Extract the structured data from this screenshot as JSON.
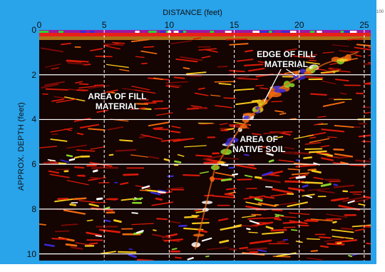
{
  "chart_data": {
    "type": "heatmap",
    "title": "",
    "xlabel": "DISTANCE (feet)",
    "ylabel": "APPROX. DEPTH (feet)",
    "xlim": [
      0,
      25.5
    ],
    "ylim": [
      10.3,
      0
    ],
    "x_ticks": [
      0,
      5,
      10,
      15,
      20,
      25
    ],
    "y_ticks": [
      0,
      2,
      4,
      6,
      8,
      10
    ],
    "grid": true,
    "grid_style": "x dashed white, y solid white",
    "colormap": [
      "#140402",
      "#7a0a04",
      "#d81a08",
      "#f06a10",
      "#f5c81c",
      "#8bd62a",
      "#ffffff",
      "#3a2ad6"
    ],
    "annotations": [
      {
        "text": "EDGE OF FILL MATERIAL",
        "x": 19.0,
        "y": 1.3
      },
      {
        "text": "AREA OF FILL MATERIAL",
        "x": 6.0,
        "y": 3.2
      },
      {
        "text": "AREA OF NATIVE SOIL",
        "x": 16.9,
        "y": 5.1
      }
    ],
    "corner_label": "100",
    "fill_boundary": [
      [
        12.0,
        9.8
      ],
      [
        13.5,
        6.2
      ],
      [
        15.2,
        4.6
      ],
      [
        16.5,
        3.7
      ],
      [
        17.2,
        3.4
      ],
      [
        18.5,
        2.6
      ],
      [
        20.0,
        2.1
      ],
      [
        22.0,
        1.5
      ],
      [
        24.5,
        1.0
      ]
    ]
  }
}
